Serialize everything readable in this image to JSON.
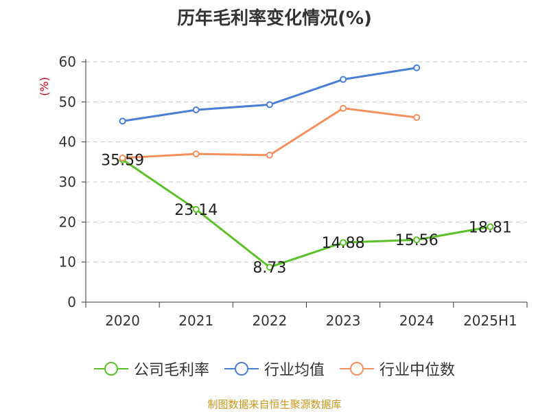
{
  "title": "历年毛利率变化情况(%)",
  "source": "制图数据来自恒生聚源数据库",
  "chart_data": {
    "type": "line",
    "title": "历年毛利率变化情况(%)",
    "ylabel": "(%)",
    "ylim": [
      0,
      60
    ],
    "yticks": [
      0,
      10,
      20,
      30,
      40,
      50,
      60
    ],
    "grid": true,
    "legend_position": "bottom",
    "categories": [
      "2020",
      "2021",
      "2022",
      "2023",
      "2024",
      "2025H1"
    ],
    "series": [
      {
        "name": "公司毛利率",
        "color": "#5cc028",
        "values": [
          35.59,
          23.14,
          8.73,
          14.88,
          15.56,
          18.81
        ],
        "labels": [
          "35.59",
          "23.14",
          "8.73",
          "14.88",
          "15.56",
          "18.81"
        ]
      },
      {
        "name": "行业均值",
        "color": "#4a7fd6",
        "values": [
          45.2,
          48.0,
          49.3,
          55.6,
          58.5,
          null
        ]
      },
      {
        "name": "行业中位数",
        "color": "#f58f5c",
        "values": [
          36.0,
          37.0,
          36.7,
          48.4,
          46.1,
          null
        ]
      }
    ]
  }
}
